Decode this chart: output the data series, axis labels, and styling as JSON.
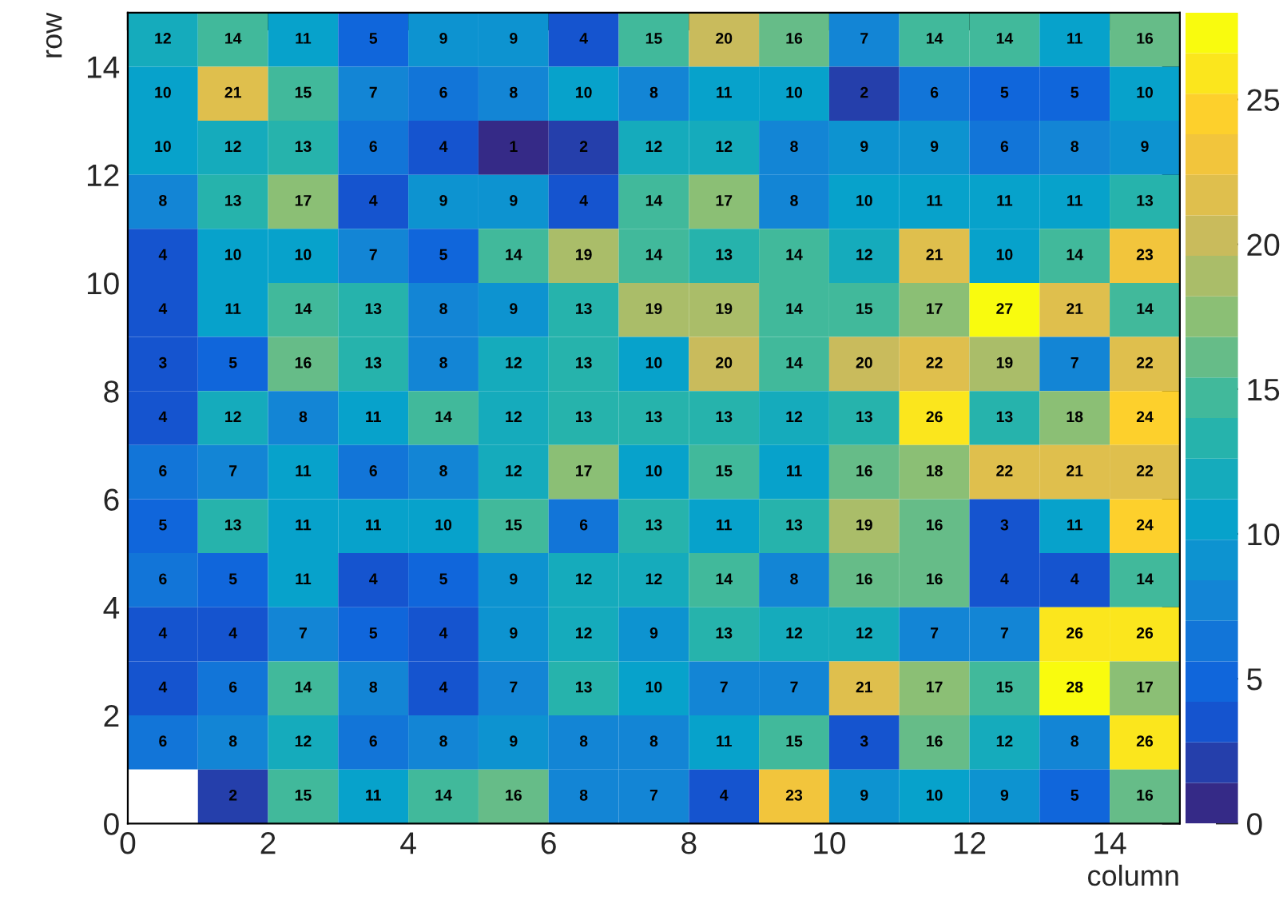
{
  "chart_data": {
    "type": "heatmap",
    "xlabel": "column",
    "ylabel": "row",
    "xlim": [
      0,
      15
    ],
    "xticks": [
      0,
      2,
      4,
      6,
      8,
      10,
      12,
      14
    ],
    "ylim": [
      0,
      15
    ],
    "yticks": [
      0,
      2,
      4,
      6,
      8,
      10,
      12,
      14
    ],
    "clim": [
      0,
      28
    ],
    "cticks": [
      0,
      5,
      10,
      15,
      20,
      25
    ],
    "colors": [
      "#352a87",
      "#0f5cdd",
      "#1481d6",
      "#06a4ca",
      "#2eb7a4",
      "#87bf77",
      "#d1bb59",
      "#fec832",
      "#f9fb0e"
    ],
    "data_labels": true,
    "cells": [
      [
        12,
        14,
        11,
        5,
        9,
        9,
        4,
        15,
        20,
        16,
        7,
        14,
        14,
        11,
        16
      ],
      [
        10,
        21,
        15,
        7,
        6,
        8,
        10,
        8,
        11,
        10,
        2,
        6,
        5,
        5,
        10
      ],
      [
        10,
        12,
        13,
        6,
        4,
        1,
        2,
        12,
        12,
        8,
        9,
        9,
        6,
        8,
        9
      ],
      [
        8,
        13,
        17,
        4,
        9,
        9,
        4,
        14,
        17,
        8,
        10,
        11,
        11,
        11,
        13
      ],
      [
        4,
        10,
        10,
        7,
        5,
        14,
        19,
        14,
        13,
        14,
        12,
        21,
        10,
        14,
        23
      ],
      [
        4,
        11,
        14,
        13,
        8,
        9,
        13,
        19,
        19,
        14,
        15,
        17,
        27,
        21,
        14
      ],
      [
        3,
        5,
        16,
        13,
        8,
        12,
        13,
        10,
        20,
        14,
        20,
        22,
        19,
        7,
        22
      ],
      [
        4,
        12,
        8,
        11,
        14,
        12,
        13,
        13,
        13,
        12,
        13,
        26,
        13,
        18,
        24
      ],
      [
        6,
        7,
        11,
        6,
        8,
        12,
        17,
        10,
        15,
        11,
        16,
        18,
        22,
        21,
        22
      ],
      [
        5,
        13,
        11,
        11,
        10,
        15,
        6,
        13,
        11,
        13,
        19,
        16,
        3,
        11,
        24
      ],
      [
        6,
        5,
        11,
        4,
        5,
        9,
        12,
        12,
        14,
        8,
        16,
        16,
        4,
        4,
        14
      ],
      [
        4,
        4,
        7,
        5,
        4,
        9,
        12,
        9,
        13,
        12,
        12,
        7,
        7,
        26,
        26
      ],
      [
        4,
        6,
        14,
        8,
        4,
        7,
        13,
        10,
        7,
        7,
        21,
        17,
        15,
        28,
        17
      ],
      [
        6,
        8,
        12,
        6,
        8,
        9,
        8,
        8,
        11,
        15,
        3,
        16,
        12,
        8,
        26
      ],
      [
        null,
        2,
        15,
        11,
        14,
        16,
        8,
        7,
        4,
        23,
        9,
        10,
        9,
        5,
        16
      ]
    ]
  }
}
